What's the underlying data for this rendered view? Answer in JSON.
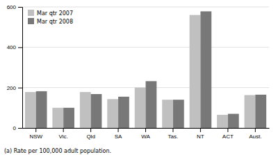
{
  "chart_data": {
    "type": "bar",
    "categories": [
      "NSW",
      "Vic.",
      "Qld",
      "SA",
      "WA",
      "Tas.",
      "NT",
      "ACT",
      "Aust."
    ],
    "series": [
      {
        "name": "Mar qtr 2007",
        "color": "#c0c0c0",
        "values": [
          178,
          100,
          178,
          143,
          200,
          140,
          560,
          65,
          163
        ]
      },
      {
        "name": "Mar qtr 2008",
        "color": "#787878",
        "values": [
          182,
          100,
          168,
          155,
          232,
          140,
          578,
          70,
          165
        ]
      }
    ],
    "ylim": [
      0,
      600
    ],
    "yticks": [
      0,
      200,
      400,
      600
    ],
    "grid": true,
    "legend": "upper left",
    "annotations": [
      "(a) Rate per 100,000 adult population."
    ]
  }
}
